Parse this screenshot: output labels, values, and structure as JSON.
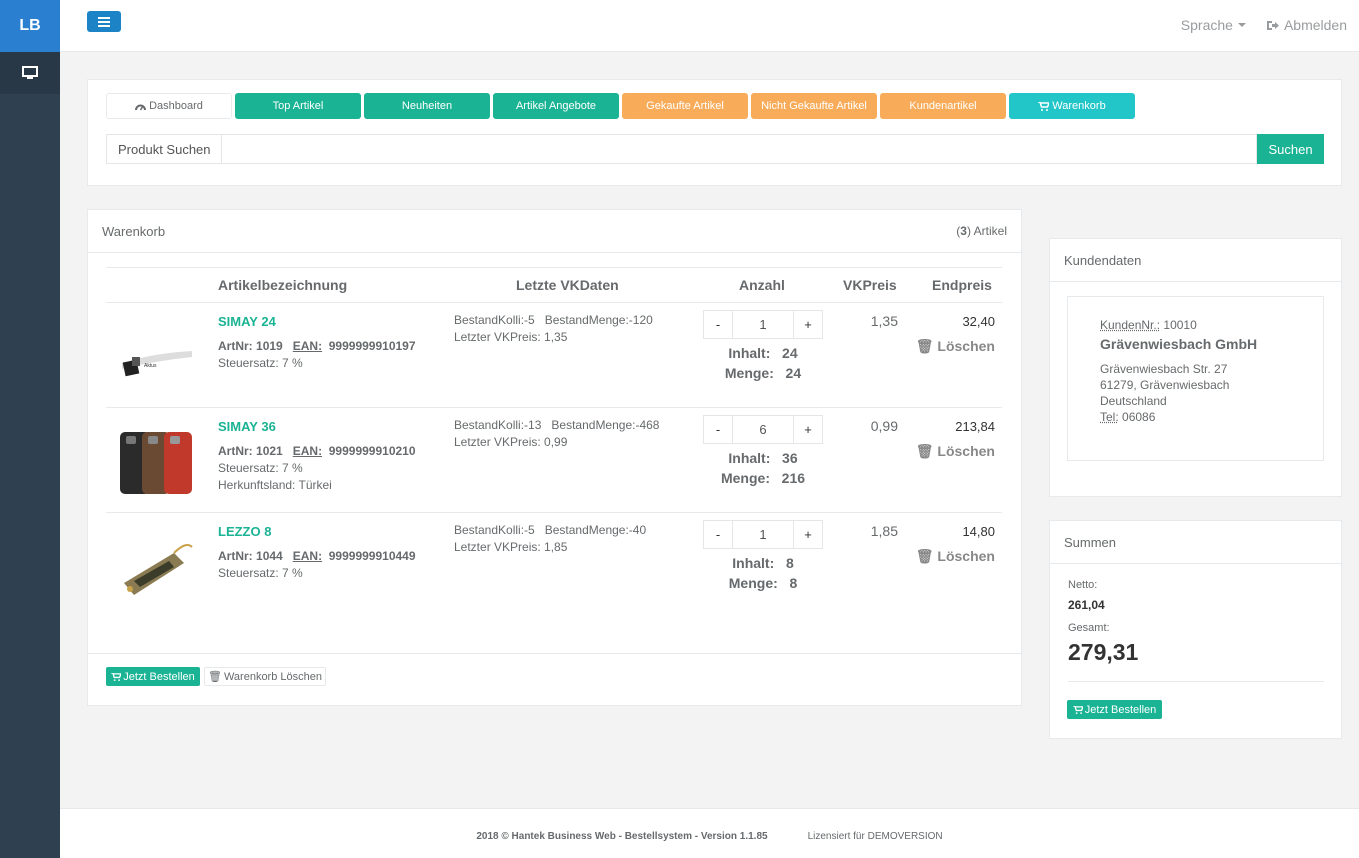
{
  "app": {
    "logo": "LB"
  },
  "topbar": {
    "language": "Sprache",
    "logout": "Abmelden"
  },
  "nav": {
    "buttons": [
      {
        "label": "Dashboard",
        "style": "white",
        "icon": "dashboard-icon"
      },
      {
        "label": "Top Artikel",
        "style": "green"
      },
      {
        "label": "Neuheiten",
        "style": "green"
      },
      {
        "label": "Artikel Angebote",
        "style": "green"
      },
      {
        "label": "Gekaufte Artikel",
        "style": "orange"
      },
      {
        "label": "Nicht Gekaufte Artikel",
        "style": "orange"
      },
      {
        "label": "Kundenartikel",
        "style": "orange"
      },
      {
        "label": "Warenkorb",
        "style": "cyan",
        "icon": "cart-icon"
      }
    ]
  },
  "search": {
    "label": "Produkt Suchen",
    "value": "",
    "placeholder": "",
    "button": "Suchen"
  },
  "cart": {
    "title": "Warenkorb",
    "count": "3",
    "count_suffix": "Artikel",
    "columns": {
      "name": "Artikelbezeichnung",
      "vk": "Letzte VKDaten",
      "qty": "Anzahl",
      "price": "VKPreis",
      "total": "Endpreis"
    },
    "items": [
      {
        "name": "SIMAY 24",
        "artnr_label": "ArtNr:",
        "artnr": "1019",
        "ean_label": "EAN:",
        "ean": "9999999910197",
        "tax": "Steuersatz: 7 %",
        "origin": "",
        "kolli": "BestandKolli:-5",
        "menge_stock": "BestandMenge:-120",
        "last_vk": "Letzter VKPreis: 1,35",
        "qty": "1",
        "inhalt_label": "Inhalt:",
        "inhalt": "24",
        "menge_label": "Menge:",
        "menge": "24",
        "price": "1,35",
        "total": "32,40",
        "delete": "Löschen"
      },
      {
        "name": "SIMAY 36",
        "artnr_label": "ArtNr:",
        "artnr": "1021",
        "ean_label": "EAN:",
        "ean": "9999999910210",
        "tax": "Steuersatz: 7 %",
        "origin": "Herkunftsland: Türkei",
        "kolli": "BestandKolli:-13",
        "menge_stock": "BestandMenge:-468",
        "last_vk": "Letzter VKPreis: 0,99",
        "qty": "6",
        "inhalt_label": "Inhalt:",
        "inhalt": "36",
        "menge_label": "Menge:",
        "menge": "216",
        "price": "0,99",
        "total": "213,84",
        "delete": "Löschen"
      },
      {
        "name": "LEZZO 8",
        "artnr_label": "ArtNr:",
        "artnr": "1044",
        "ean_label": "EAN:",
        "ean": "9999999910449",
        "tax": "Steuersatz: 7 %",
        "origin": "",
        "kolli": "BestandKolli:-5",
        "menge_stock": "BestandMenge:-40",
        "last_vk": "Letzter VKPreis: 1,85",
        "qty": "1",
        "inhalt_label": "Inhalt:",
        "inhalt": "8",
        "menge_label": "Menge:",
        "menge": "8",
        "price": "1,85",
        "total": "14,80",
        "delete": "Löschen"
      }
    ],
    "order_button": "Jetzt Bestellen",
    "clear_button": "Warenkorb Löschen"
  },
  "customer": {
    "title": "Kundendaten",
    "nr_label": "KundenNr.:",
    "nr": "10010",
    "name": "Grävenwiesbach GmbH",
    "street": "Grävenwiesbach Str. 27",
    "city": "61279, Grävenwiesbach",
    "country": "Deutschland",
    "tel_label": "Tel:",
    "tel": "06086"
  },
  "sums": {
    "title": "Summen",
    "netto_label": "Netto:",
    "netto": "261,04",
    "gesamt_label": "Gesamt:",
    "gesamt": "279,31",
    "order_button": "Jetzt Bestellen"
  },
  "footer": {
    "copyright": "2018 © Hantek Business Web - Bestellsystem - Version 1.1.85",
    "license": "Lizensiert für DEMOVERSION"
  }
}
